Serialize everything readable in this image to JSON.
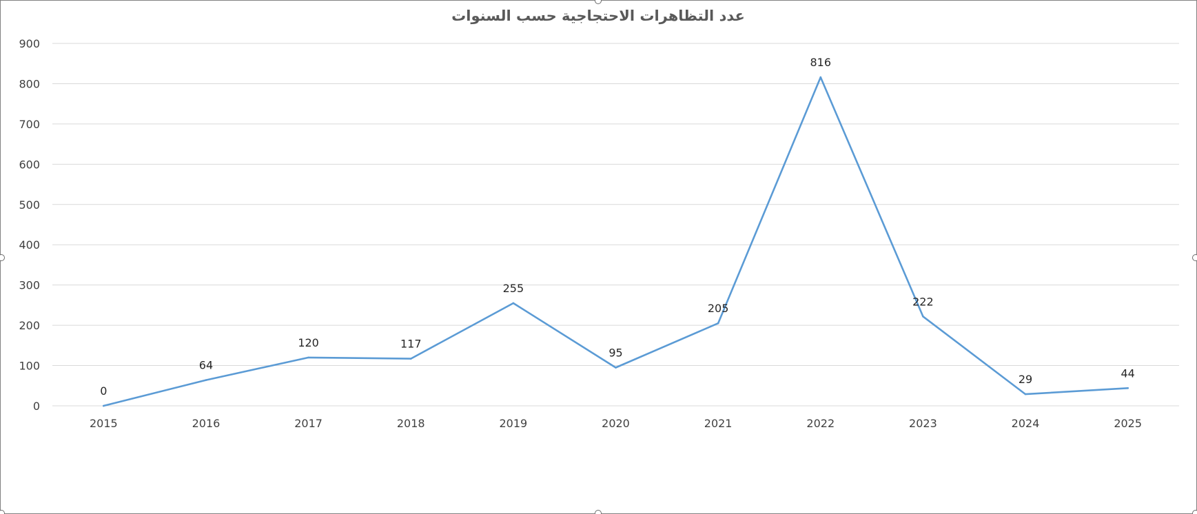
{
  "chart_data": {
    "type": "line",
    "title": "عدد التظاهرات الاحتجاجية حسب السنوات",
    "categories": [
      "2015",
      "2016",
      "2017",
      "2018",
      "2019",
      "2020",
      "2021",
      "2022",
      "2023",
      "2024",
      "2025"
    ],
    "series": [
      {
        "values": [
          0,
          64,
          120,
          117,
          255,
          95,
          205,
          816,
          222,
          29,
          44
        ],
        "color": "#5b9bd5"
      }
    ],
    "ylim": [
      0,
      900
    ],
    "yticks": [
      0,
      100,
      200,
      300,
      400,
      500,
      600,
      700,
      800,
      900
    ],
    "grid": true,
    "legend": "none",
    "data_labels": true
  }
}
